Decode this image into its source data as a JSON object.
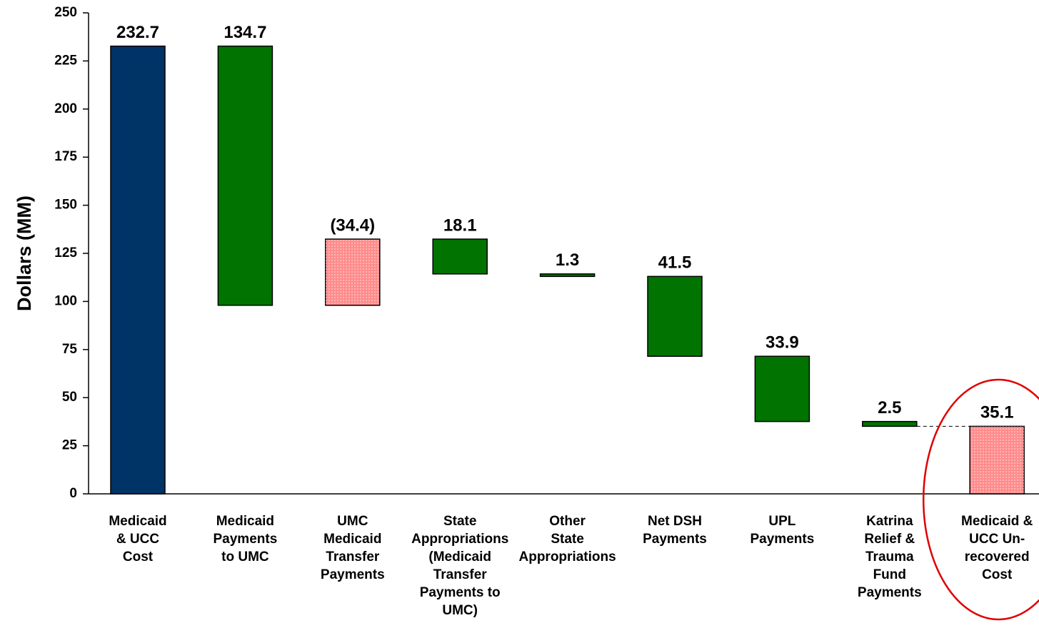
{
  "chart_data": {
    "type": "waterfall",
    "ylabel": "Dollars (MM)",
    "categories": [
      "Medicaid\n& UCC\nCost",
      "Medicaid\nPayments\nto UMC",
      "UMC\nMedicaid\nTransfer\nPayments",
      "State\nAppropriations\n(Medicaid\nTransfer\nPayments to\nUMC)",
      "Other\nState\nAppropriations",
      "Net DSH\nPayments",
      "UPL\nPayments",
      "Katrina\nRelief &\nTrauma\nFund\nPayments",
      "Medicaid &\nUCC Un-\nrecovered\nCost"
    ],
    "values": [
      232.7,
      134.7,
      34.4,
      18.1,
      1.3,
      41.5,
      33.9,
      2.5,
      35.1
    ],
    "value_labels": [
      "232.7",
      "134.7",
      "(34.4)",
      "18.1",
      "1.3",
      "41.5",
      "33.9",
      "2.5",
      "35.1"
    ],
    "measure": [
      "total",
      "decrease",
      "increase",
      "decrease",
      "decrease",
      "decrease",
      "decrease",
      "decrease",
      "total"
    ],
    "colors": [
      "#003366",
      "#007300",
      "#ff8c8c",
      "#007300",
      "#007300",
      "#007300",
      "#007300",
      "#007300",
      "#ff8c8c"
    ],
    "ylim": [
      0,
      250
    ],
    "yticks": [
      0,
      25,
      50,
      75,
      100,
      125,
      150,
      175,
      200,
      225,
      250
    ]
  }
}
